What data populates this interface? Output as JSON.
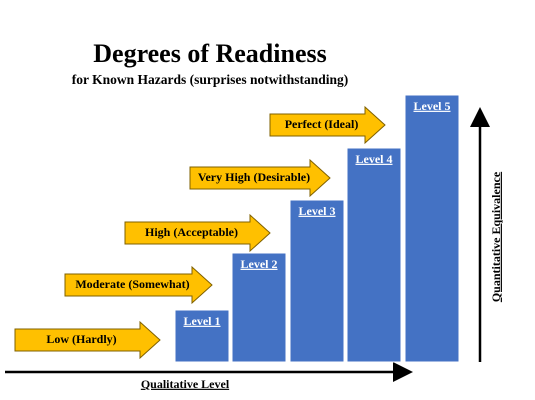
{
  "title": "Degrees of Readiness",
  "subtitle": "for Known Hazards (surprises notwithstanding)",
  "levels": [
    {
      "label": "Level 1",
      "arrow": "Low (Hardly)"
    },
    {
      "label": "Level 2",
      "arrow": "Moderate (Somewhat)"
    },
    {
      "label": "Level 3",
      "arrow": "High (Acceptable)"
    },
    {
      "label": "Level 4",
      "arrow": "Very High (Desirable)"
    },
    {
      "label": "Level 5",
      "arrow": "Perfect (Ideal)"
    }
  ],
  "x_axis_label": "Qualitative Level",
  "y_axis_label": "Quantitative Equivalence"
}
